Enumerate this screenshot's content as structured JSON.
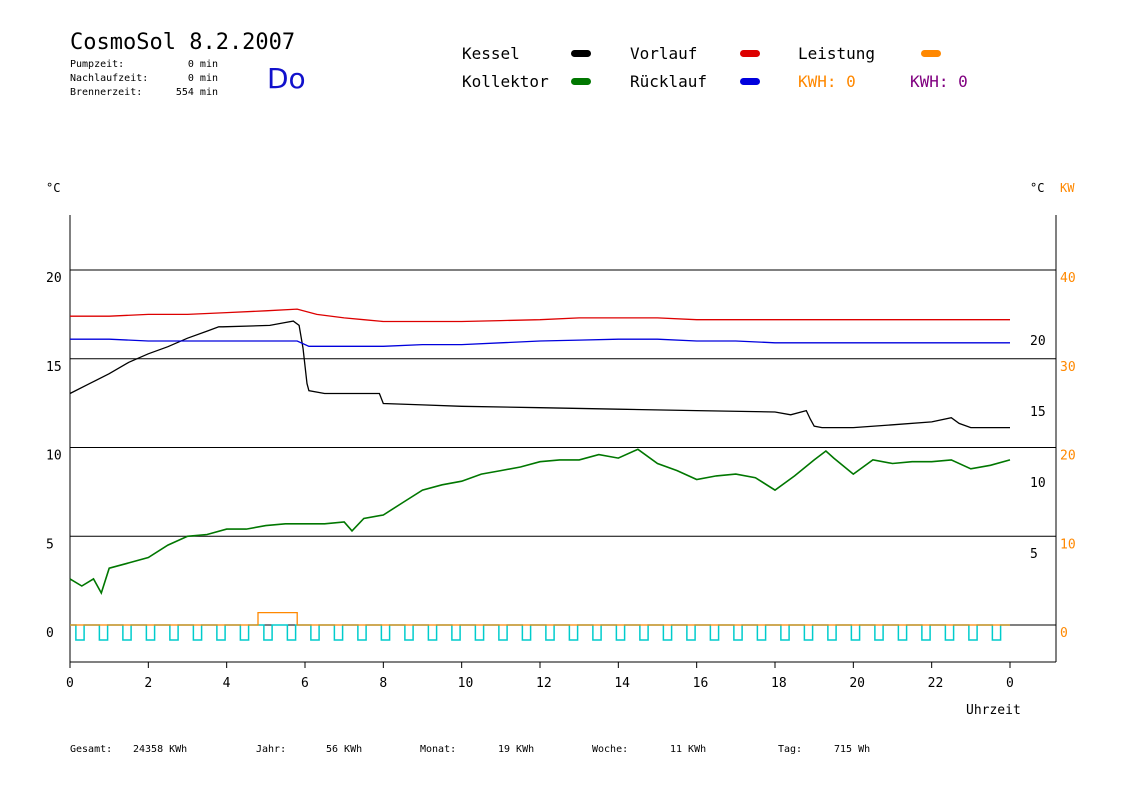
{
  "header": {
    "title": "CosmoSol 8.2.2007",
    "day": "Do",
    "stats": [
      {
        "label": "Pumpzeit:",
        "value": "0 min"
      },
      {
        "label": "Nachlaufzeit:",
        "value": "0 min"
      },
      {
        "label": "Brennerzeit:",
        "value": "554 min"
      }
    ]
  },
  "legend": {
    "items": [
      {
        "label": "Kessel",
        "color": "#000000"
      },
      {
        "label": "Kollektor",
        "color": "#007700"
      },
      {
        "label": "Vorlauf",
        "color": "#dd0000"
      },
      {
        "label": "Rücklauf",
        "color": "#0000dd"
      },
      {
        "label": "Leistung",
        "color": "#ff8800"
      }
    ],
    "kwh_orange": "KWH: 0",
    "kwh_purple": "KWH: 0",
    "kwh_orange_color": "#ff8800",
    "kwh_purple_color": "#800080"
  },
  "footer": {
    "gesamt_label": "Gesamt:",
    "gesamt_value": "24358 KWh",
    "jahr_label": "Jahr:",
    "jahr_value": "56 KWh",
    "monat_label": "Monat:",
    "monat_value": "19 KWh",
    "woche_label": "Woche:",
    "woche_value": "11 KWh",
    "tag_label": "Tag:",
    "tag_value": "715 Wh"
  },
  "chart_data": {
    "type": "line",
    "xlabel": "Uhrzeit",
    "x_ticks": [
      "0",
      "2",
      "4",
      "6",
      "8",
      "10",
      "12",
      "14",
      "16",
      "18",
      "20",
      "22",
      "0"
    ],
    "xlim": [
      0,
      24
    ],
    "left_axis": {
      "unit": "°C",
      "ticks": [
        "0",
        "5",
        "10",
        "15",
        "20"
      ],
      "ylim": [
        0,
        20
      ]
    },
    "right_axis_kessel": {
      "unit": "°C",
      "ticks": [
        "5",
        "10",
        "15",
        "20"
      ],
      "ylim": [
        0,
        25
      ]
    },
    "right_axis_power": {
      "unit": "KW",
      "ticks": [
        "0",
        "10",
        "20",
        "30",
        "40"
      ],
      "ylim": [
        0,
        40
      ],
      "color": "#ff8800"
    },
    "series": [
      {
        "name": "Kessel",
        "color": "#000000",
        "axis": "right_kessel",
        "x": [
          0,
          0.5,
          1,
          1.5,
          2,
          2.5,
          3,
          3.5,
          3.8,
          3.9,
          5.1,
          5.5,
          5.7,
          5.85,
          5.95,
          6.05,
          6.1,
          6.5,
          7,
          7.5,
          7.9,
          8,
          9,
          10,
          12,
          14,
          16,
          18,
          18.4,
          18.8,
          18.9,
          19.0,
          19.2,
          19.4,
          20,
          21,
          22,
          22.5,
          22.7,
          23,
          23.5,
          24
        ],
        "y": [
          16.3,
          17,
          17.7,
          18.5,
          19.1,
          19.6,
          20.2,
          20.7,
          21,
          21,
          21.1,
          21.3,
          21.4,
          21.1,
          19.5,
          17,
          16.5,
          16.3,
          16.3,
          16.3,
          16.3,
          15.6,
          15.5,
          15.4,
          15.3,
          15.2,
          15.1,
          15.0,
          14.8,
          15.1,
          14.5,
          14.0,
          13.9,
          13.9,
          13.9,
          14.1,
          14.3,
          14.6,
          14.2,
          13.9,
          13.9,
          13.9
        ]
      },
      {
        "name": "Vorlauf",
        "color": "#dd0000",
        "axis": "left",
        "x": [
          0,
          1,
          2,
          3,
          4,
          5,
          5.8,
          6.3,
          7,
          7.5,
          8,
          9,
          10,
          11,
          12,
          13,
          14,
          15,
          16,
          17,
          18,
          19,
          20,
          21,
          22,
          23,
          24
        ],
        "y": [
          17.4,
          17.4,
          17.5,
          17.5,
          17.6,
          17.7,
          17.8,
          17.5,
          17.3,
          17.2,
          17.1,
          17.1,
          17.1,
          17.15,
          17.2,
          17.3,
          17.3,
          17.3,
          17.2,
          17.2,
          17.2,
          17.2,
          17.2,
          17.2,
          17.2,
          17.2,
          17.2
        ]
      },
      {
        "name": "Rücklauf",
        "color": "#0000dd",
        "axis": "left",
        "x": [
          0,
          1,
          2,
          3,
          4,
          5,
          5.8,
          6.1,
          7,
          8,
          9,
          10,
          11,
          12,
          13,
          14,
          15,
          16,
          17,
          18,
          19,
          20,
          21,
          22,
          23,
          24
        ],
        "y": [
          16.1,
          16.1,
          16.0,
          16.0,
          16.0,
          16.0,
          16.0,
          15.7,
          15.7,
          15.7,
          15.8,
          15.8,
          15.9,
          16.0,
          16.05,
          16.1,
          16.1,
          16.0,
          16.0,
          15.9,
          15.9,
          15.9,
          15.9,
          15.9,
          15.9,
          15.9
        ]
      },
      {
        "name": "Kollektor",
        "color": "#007700",
        "axis": "left",
        "x": [
          0,
          0.3,
          0.6,
          0.8,
          1,
          1.5,
          2,
          2.5,
          3,
          3.5,
          4,
          4.5,
          5,
          5.5,
          6,
          6.5,
          7,
          7.2,
          7.5,
          8,
          8.5,
          9,
          9.5,
          10,
          10.5,
          11,
          11.5,
          12,
          12.5,
          13,
          13.5,
          14,
          14.5,
          15,
          15.5,
          16,
          16.5,
          17,
          17.5,
          18,
          18.5,
          19,
          19.3,
          19.5,
          20,
          20.5,
          21,
          21.5,
          22,
          22.5,
          23,
          23.5,
          24
        ],
        "y": [
          2.6,
          2.2,
          2.6,
          1.8,
          3.2,
          3.5,
          3.8,
          4.5,
          5.0,
          5.1,
          5.4,
          5.4,
          5.6,
          5.7,
          5.7,
          5.7,
          5.8,
          5.3,
          6.0,
          6.2,
          6.9,
          7.6,
          7.9,
          8.1,
          8.5,
          8.7,
          8.9,
          9.2,
          9.3,
          9.3,
          9.6,
          9.4,
          9.9,
          9.1,
          8.7,
          8.2,
          8.4,
          8.5,
          8.3,
          7.6,
          8.4,
          9.3,
          9.8,
          9.4,
          8.5,
          9.3,
          9.1,
          9.2,
          9.2,
          9.3,
          8.8,
          9.0,
          9.3
        ]
      },
      {
        "name": "Leistung",
        "color": "#ff8800",
        "axis": "right_power",
        "x": [
          0,
          4.8,
          4.8,
          5.8,
          5.8,
          24
        ],
        "y": [
          0,
          0,
          1.4,
          1.4,
          0,
          0
        ]
      }
    ],
    "pump_pattern": {
      "color": "#00cccc",
      "count": 40
    }
  }
}
